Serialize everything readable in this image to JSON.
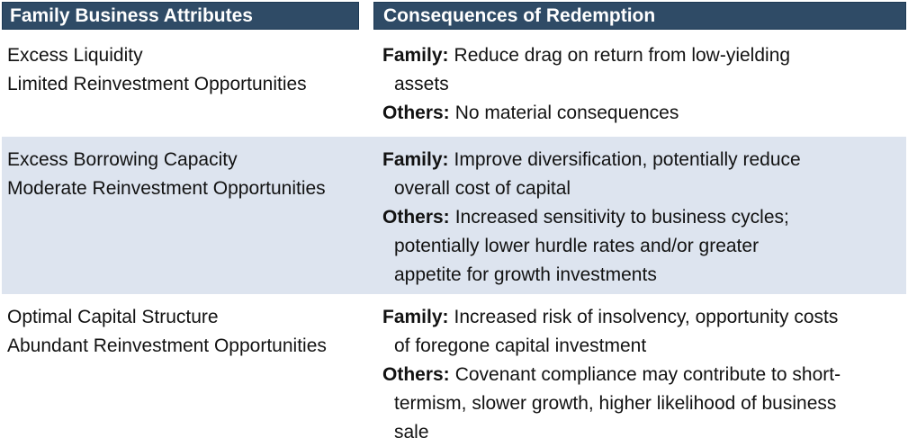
{
  "colors": {
    "header_bg": "#2F4B66",
    "header_border": "#1E3A55",
    "header_text": "#FFFFFF",
    "alt_row_bg": "#DDE4EF",
    "body_text": "#121212"
  },
  "table": {
    "header": {
      "attributes": "Family Business Attributes",
      "consequences": "Consequences of Redemption"
    },
    "rows": [
      {
        "attributes": [
          "Excess Liquidity",
          "Limited Reinvestment Opportunities"
        ],
        "family": {
          "label": "Family:",
          "lines": [
            "Reduce drag on return from low-yielding",
            "assets"
          ]
        },
        "others": {
          "label": "Others:",
          "lines": [
            "No material consequences"
          ]
        }
      },
      {
        "attributes": [
          "Excess Borrowing Capacity",
          "Moderate Reinvestment Opportunities"
        ],
        "family": {
          "label": "Family:",
          "lines": [
            "Improve diversification, potentially reduce",
            "overall cost of capital"
          ]
        },
        "others": {
          "label": "Others:",
          "lines": [
            "Increased sensitivity to business cycles;",
            "potentially lower hurdle rates and/or greater",
            "appetite for growth investments"
          ]
        }
      },
      {
        "attributes": [
          "Optimal Capital Structure",
          "Abundant Reinvestment Opportunities"
        ],
        "family": {
          "label": "Family:",
          "lines": [
            "Increased risk of insolvency, opportunity costs",
            "of foregone capital investment"
          ]
        },
        "others": {
          "label": "Others:",
          "lines": [
            "Covenant compliance may contribute to short-",
            "termism, slower growth, higher likelihood of business",
            "sale"
          ]
        }
      }
    ]
  }
}
